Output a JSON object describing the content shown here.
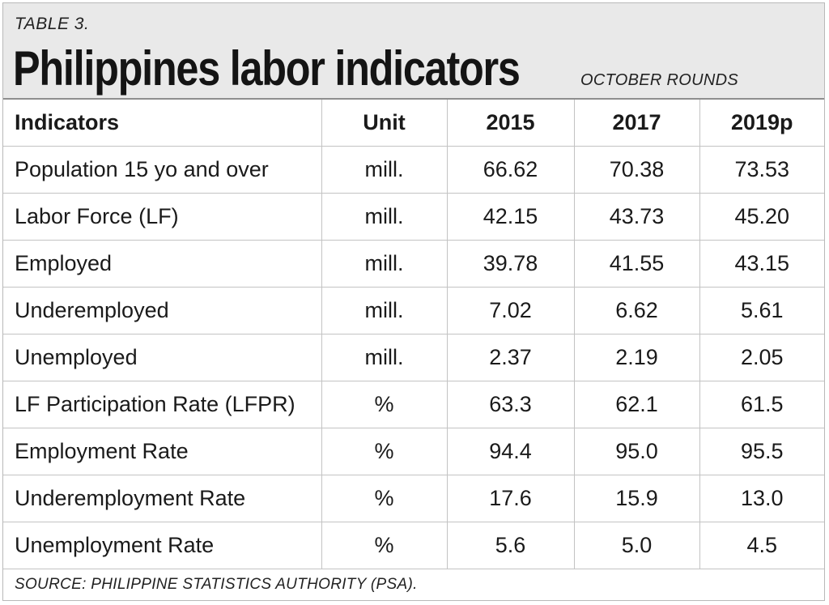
{
  "header": {
    "table_label": "TABLE 3.",
    "title": "Philippines labor indicators",
    "subtitle": "OCTOBER ROUNDS"
  },
  "footer": {
    "source": "SOURCE: PHILIPPINE STATISTICS AUTHORITY (PSA)."
  },
  "chart_data": {
    "type": "table",
    "title": "Philippines labor indicators",
    "subtitle": "OCTOBER ROUNDS",
    "columns": [
      "Indicators",
      "Unit",
      "2015",
      "2017",
      "2019p"
    ],
    "rows": [
      [
        "Population 15 yo and over",
        "mill.",
        "66.62",
        "70.38",
        "73.53"
      ],
      [
        "Labor Force (LF)",
        "mill.",
        "42.15",
        "43.73",
        "45.20"
      ],
      [
        "Employed",
        "mill.",
        "39.78",
        "41.55",
        "43.15"
      ],
      [
        "Underemployed",
        "mill.",
        "7.02",
        "6.62",
        "5.61"
      ],
      [
        "Unemployed",
        "mill.",
        "2.37",
        "2.19",
        "2.05"
      ],
      [
        "LF Participation Rate (LFPR)",
        "%",
        "63.3",
        "62.1",
        "61.5"
      ],
      [
        "Employment Rate",
        "%",
        "94.4",
        "95.0",
        "95.5"
      ],
      [
        "Underemployment Rate",
        "%",
        "17.6",
        "15.9",
        "13.0"
      ],
      [
        "Unemployment Rate",
        "%",
        "5.6",
        "5.0",
        "4.5"
      ]
    ]
  }
}
